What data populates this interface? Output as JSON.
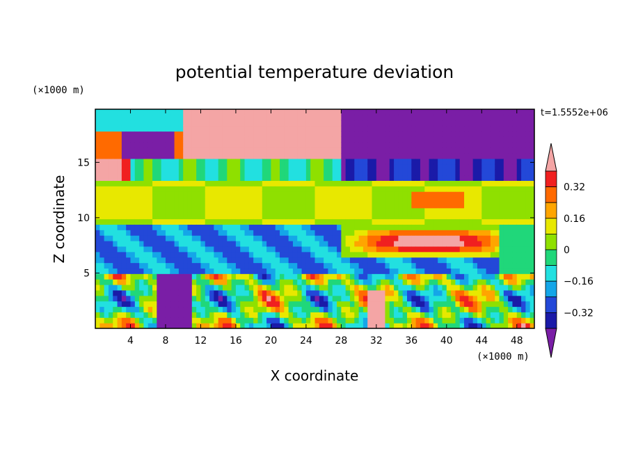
{
  "chart_data": {
    "type": "heatmap",
    "title": "potential temperature deviation",
    "xlabel": "X coordinate",
    "ylabel": "Z coordinate",
    "x_unit": "(×1000 m)",
    "y_unit": "(×1000 m)",
    "time_label": "t=1.5552e+06",
    "xlim": [
      0,
      50
    ],
    "ylim": [
      0,
      19.8
    ],
    "x_ticks": [
      4,
      8,
      12,
      16,
      20,
      24,
      28,
      32,
      36,
      40,
      44,
      48
    ],
    "y_ticks": [
      5,
      10,
      15
    ],
    "colorbar": {
      "levels": [
        -0.4,
        -0.32,
        -0.24,
        -0.16,
        -0.08,
        0,
        0.08,
        0.16,
        0.24,
        0.32,
        0.4
      ],
      "tick_labels": [
        "0.32",
        "0.16",
        "0",
        "−0.16",
        "−0.32"
      ],
      "tick_values": [
        0.32,
        0.16,
        0,
        -0.16,
        -0.32
      ],
      "colors": [
        "#7a1ea6",
        "#1a1aa8",
        "#2348d8",
        "#14a6e8",
        "#22e0e0",
        "#20d77a",
        "#8fe000",
        "#e8e800",
        "#ffa500",
        "#ff6a00",
        "#f02020",
        "#f4a5a5"
      ]
    },
    "field_description_points": [
      {
        "x": 22,
        "z": 18,
        "value": 0.45
      },
      {
        "x": 40,
        "z": 18,
        "value": -0.45
      },
      {
        "x": 6,
        "z": 16.5,
        "value": -0.4
      },
      {
        "x": 3,
        "z": 13,
        "value": 0.45
      },
      {
        "x": 20,
        "z": 11.5,
        "value": 0.1
      },
      {
        "x": 35,
        "z": 8,
        "value": 0.45
      },
      {
        "x": 14,
        "z": 8.5,
        "value": -0.35
      },
      {
        "x": 28,
        "z": 9,
        "value": -0.1
      },
      {
        "x": 9,
        "z": 2,
        "value": -0.45
      },
      {
        "x": 32,
        "z": 2,
        "value": 0.45
      }
    ]
  }
}
